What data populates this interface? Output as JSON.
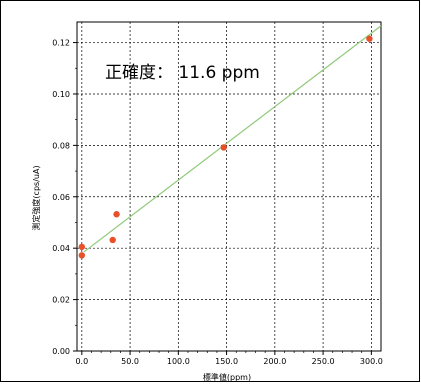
{
  "chart_data": {
    "type": "scatter",
    "title": "",
    "xlabel": "標準値(ppm)",
    "ylabel": "測定強度(cps/uA)",
    "xlim": [
      -5,
      310
    ],
    "ylim": [
      0,
      0.128
    ],
    "x_ticks": [
      0,
      50,
      100,
      150,
      200,
      250,
      300
    ],
    "x_tick_labels": [
      "0.0",
      "50.0",
      "100.0",
      "150.0",
      "200.0",
      "250.0",
      "300.0"
    ],
    "y_ticks": [
      0,
      0.02,
      0.04,
      0.06,
      0.08,
      0.1,
      0.12
    ],
    "y_tick_labels": [
      "0.00",
      "0.02",
      "0.04",
      "0.06",
      "0.08",
      "0.10",
      "0.12"
    ],
    "grid": true,
    "series": [
      {
        "kind": "points",
        "color": "#e8502a",
        "x": [
          0,
          0,
          32,
          36,
          147,
          298
        ],
        "y": [
          0.0405,
          0.0372,
          0.0432,
          0.0532,
          0.0792,
          0.1215
        ]
      },
      {
        "kind": "fit-line",
        "color": "#90c978",
        "x": [
          2,
          310
        ],
        "y": [
          0.0385,
          0.1265
        ]
      }
    ],
    "annotation": "正確度： 11.6 ppm"
  }
}
